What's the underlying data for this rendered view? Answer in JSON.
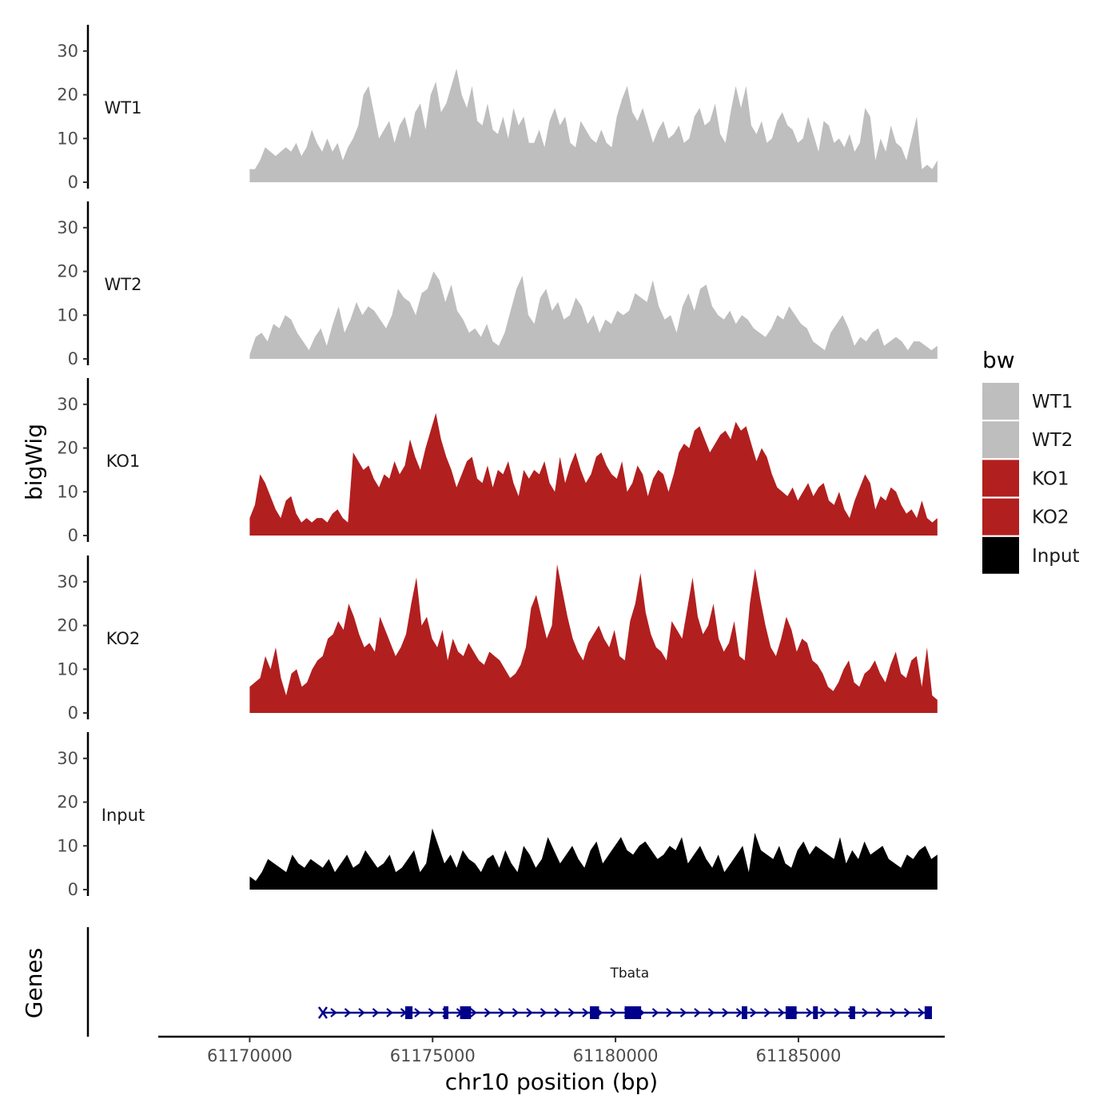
{
  "chart_data": {
    "type": "area",
    "title": "",
    "ylabel": "bigWig",
    "xlabel": "chr10 position (bp)",
    "xlim": [
      61167500,
      61189000
    ],
    "ylim": [
      0,
      36
    ],
    "x_ticks": [
      61170000,
      61175000,
      61180000,
      61185000
    ],
    "x_tick_labels": [
      "61170000",
      "61175000",
      "61180000",
      "61185000"
    ],
    "y_ticks": [
      0,
      10,
      20,
      30
    ],
    "y_tick_labels": [
      "0",
      "10",
      "20",
      "30"
    ],
    "legend": {
      "title": "bw",
      "position": "right",
      "entries": [
        {
          "name": "WT1",
          "color": "#bebebe"
        },
        {
          "name": "WT2",
          "color": "#bebebe"
        },
        {
          "name": "KO1",
          "color": "#b21f1f"
        },
        {
          "name": "KO2",
          "color": "#b21f1f"
        },
        {
          "name": "Input",
          "color": "#000000"
        }
      ]
    },
    "series": [
      {
        "name": "WT1",
        "color": "#bebebe",
        "x_start": 61170000,
        "x_end": 61188800,
        "values": [
          3,
          3,
          5,
          8,
          7,
          6,
          7,
          8,
          7,
          9,
          6,
          8,
          12,
          9,
          7,
          10,
          7,
          9,
          5,
          8,
          10,
          13,
          20,
          22,
          16,
          10,
          12,
          14,
          9,
          13,
          15,
          10,
          16,
          18,
          12,
          20,
          23,
          16,
          18,
          22,
          26,
          20,
          17,
          22,
          14,
          13,
          18,
          12,
          11,
          15,
          10,
          17,
          13,
          15,
          9,
          9,
          12,
          8,
          14,
          17,
          13,
          15,
          9,
          8,
          14,
          12,
          10,
          9,
          12,
          9,
          8,
          15,
          19,
          22,
          16,
          14,
          17,
          13,
          9,
          12,
          14,
          10,
          11,
          13,
          9,
          10,
          15,
          17,
          13,
          14,
          18,
          11,
          9,
          16,
          22,
          17,
          22,
          13,
          11,
          14,
          9,
          10,
          14,
          16,
          13,
          12,
          9,
          10,
          15,
          11,
          7,
          14,
          13,
          9,
          10,
          8,
          11,
          7,
          9,
          17,
          15,
          5,
          10,
          7,
          13,
          9,
          8,
          5,
          10,
          15,
          3,
          4,
          3,
          5
        ]
      },
      {
        "name": "WT2",
        "color": "#bebebe",
        "x_start": 61170000,
        "x_end": 61188800,
        "values": [
          1,
          5,
          6,
          4,
          8,
          7,
          10,
          9,
          6,
          4,
          2,
          5,
          7,
          3,
          8,
          12,
          6,
          9,
          13,
          10,
          12,
          11,
          9,
          7,
          10,
          16,
          14,
          13,
          10,
          15,
          16,
          20,
          18,
          13,
          17,
          11,
          9,
          6,
          7,
          5,
          8,
          4,
          3,
          6,
          11,
          16,
          19,
          10,
          8,
          14,
          16,
          11,
          13,
          9,
          10,
          14,
          12,
          8,
          10,
          6,
          9,
          8,
          11,
          10,
          11,
          15,
          14,
          13,
          18,
          12,
          9,
          10,
          6,
          12,
          15,
          11,
          16,
          17,
          12,
          10,
          9,
          11,
          8,
          10,
          9,
          7,
          6,
          5,
          7,
          10,
          9,
          12,
          10,
          8,
          7,
          4,
          3,
          2,
          6,
          8,
          10,
          7,
          3,
          5,
          4,
          6,
          7,
          3,
          4,
          5,
          4,
          2,
          4,
          4,
          3,
          2,
          3
        ]
      },
      {
        "name": "KO1",
        "color": "#b21f1f",
        "x_start": 61170000,
        "x_end": 61188800,
        "values": [
          4,
          7,
          14,
          12,
          9,
          6,
          4,
          8,
          9,
          5,
          3,
          4,
          3,
          4,
          4,
          3,
          5,
          6,
          4,
          3,
          19,
          17,
          15,
          16,
          13,
          11,
          14,
          13,
          17,
          14,
          16,
          22,
          18,
          15,
          20,
          24,
          28,
          22,
          18,
          15,
          11,
          14,
          17,
          18,
          13,
          12,
          16,
          11,
          15,
          14,
          17,
          12,
          9,
          15,
          13,
          15,
          14,
          17,
          12,
          10,
          18,
          12,
          16,
          19,
          15,
          12,
          14,
          18,
          19,
          16,
          14,
          13,
          17,
          10,
          12,
          16,
          14,
          9,
          13,
          15,
          14,
          10,
          14,
          19,
          21,
          20,
          24,
          25,
          22,
          19,
          21,
          23,
          24,
          22,
          26,
          24,
          25,
          21,
          17,
          20,
          18,
          14,
          11,
          10,
          9,
          11,
          8,
          10,
          12,
          9,
          11,
          12,
          8,
          7,
          10,
          6,
          4,
          8,
          11,
          14,
          12,
          6,
          9,
          8,
          11,
          10,
          7,
          5,
          6,
          4,
          8,
          4,
          3,
          4
        ]
      },
      {
        "name": "KO2",
        "color": "#b21f1f",
        "x_start": 61170000,
        "x_end": 61188800,
        "values": [
          6,
          7,
          8,
          13,
          10,
          15,
          8,
          4,
          9,
          10,
          6,
          7,
          10,
          12,
          13,
          17,
          18,
          21,
          19,
          25,
          22,
          18,
          15,
          16,
          14,
          22,
          19,
          16,
          13,
          15,
          18,
          25,
          31,
          20,
          22,
          17,
          15,
          19,
          12,
          17,
          14,
          13,
          16,
          14,
          12,
          11,
          14,
          13,
          12,
          10,
          8,
          9,
          11,
          15,
          24,
          27,
          22,
          17,
          20,
          34,
          28,
          22,
          17,
          14,
          12,
          16,
          18,
          20,
          17,
          15,
          19,
          13,
          12,
          21,
          25,
          32,
          23,
          18,
          15,
          14,
          12,
          21,
          19,
          17,
          24,
          31,
          22,
          18,
          20,
          25,
          17,
          14,
          16,
          21,
          13,
          12,
          25,
          33,
          26,
          20,
          15,
          13,
          17,
          22,
          19,
          14,
          17,
          16,
          12,
          11,
          9,
          6,
          5,
          7,
          10,
          12,
          7,
          6,
          9,
          10,
          12,
          9,
          7,
          11,
          14,
          9,
          8,
          12,
          13,
          6,
          15,
          4,
          3
        ]
      },
      {
        "name": "Input",
        "color": "#000000",
        "x_start": 61170000,
        "x_end": 61188800,
        "values": [
          3,
          2,
          4,
          7,
          6,
          5,
          4,
          8,
          6,
          5,
          7,
          6,
          5,
          7,
          4,
          6,
          8,
          5,
          6,
          9,
          7,
          5,
          6,
          8,
          4,
          5,
          7,
          9,
          4,
          6,
          14,
          10,
          6,
          8,
          5,
          9,
          7,
          6,
          4,
          7,
          8,
          5,
          9,
          6,
          4,
          10,
          8,
          5,
          7,
          12,
          9,
          6,
          8,
          10,
          7,
          5,
          9,
          11,
          6,
          8,
          10,
          12,
          9,
          8,
          10,
          11,
          9,
          7,
          8,
          10,
          9,
          12,
          6,
          8,
          10,
          7,
          5,
          8,
          4,
          6,
          8,
          10,
          4,
          13,
          9,
          8,
          7,
          10,
          6,
          5,
          9,
          11,
          8,
          10,
          9,
          8,
          7,
          12,
          6,
          9,
          7,
          11,
          8,
          9,
          10,
          7,
          6,
          5,
          8,
          7,
          9,
          10,
          7,
          8
        ]
      }
    ],
    "genes_track": {
      "label": "Genes",
      "gene_name": "Tbata",
      "color": "#00008b",
      "start": 61172000,
      "end": 61188600,
      "strand": "+",
      "exons": [
        [
          61174250,
          61174450
        ],
        [
          61175300,
          61175400
        ],
        [
          61175750,
          61176050
        ],
        [
          61179300,
          61179550
        ],
        [
          61180250,
          61180700
        ],
        [
          61183450,
          61183600
        ],
        [
          61184650,
          61184950
        ],
        [
          61185400,
          61185500
        ],
        [
          61186400,
          61186550
        ],
        [
          61188450,
          61188650
        ]
      ]
    }
  }
}
